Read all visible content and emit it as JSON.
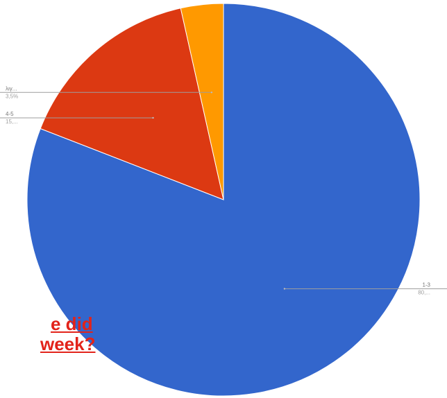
{
  "question_fragments": {
    "line1": "e did",
    "line2": "week?"
  },
  "chart_data": {
    "type": "pie",
    "start_angle_deg": 0,
    "direction": "clockwise",
    "slices": [
      {
        "name": "1-3",
        "value_label": "80,...",
        "value": 80.9,
        "color": "#3366cc"
      },
      {
        "name": "4-5",
        "value_label": "15,...",
        "value": 15.6,
        "color": "#dc3912"
      },
      {
        "name": "λιγ...",
        "value_label": "3,5%",
        "value": 3.5,
        "color": "#ff9900"
      }
    ]
  }
}
